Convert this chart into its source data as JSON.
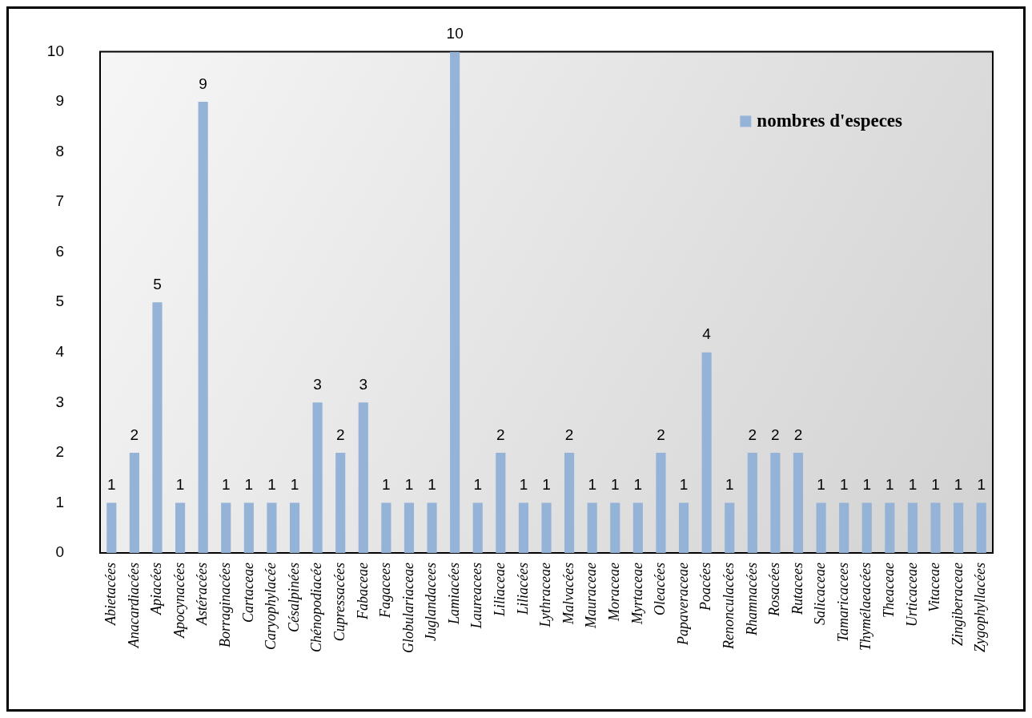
{
  "chart_data": {
    "type": "bar",
    "categories": [
      "Abietacées",
      "Anacardiacées",
      "Apiacées",
      "Apocynacées",
      "Astéracées",
      "Borraginacées",
      "Cartaceae",
      "Caryophylacée",
      "Césalpinées",
      "Chénopodiacée",
      "Cupressacées",
      "Fabaceae",
      "Fagacees",
      "Globulariaceae",
      "Juglandacees",
      "Lamiacées",
      "Laureacees",
      "Liliaceae",
      "Liliacées",
      "Lythraceae",
      "Malvacées",
      "Mauraceae",
      "Moraceae",
      "Myrtaceae",
      "Oleacées",
      "Papaveraceae",
      "Poacées",
      "Renonculacées",
      "Rhamnacées",
      "Rosacées",
      "Rutacees",
      "Salicaceae",
      "Tamaricacees",
      "Thymélaeacées",
      "Theaceae",
      "Urticaceae",
      "Vitaceae",
      "Zingiberaceae",
      "Zygophyllacées"
    ],
    "series": [
      {
        "name": "nombres d'especes",
        "color": "#95b3d7",
        "values": [
          1,
          2,
          5,
          1,
          9,
          1,
          1,
          1,
          1,
          3,
          2,
          3,
          1,
          1,
          1,
          10,
          1,
          2,
          1,
          1,
          2,
          1,
          1,
          1,
          2,
          1,
          4,
          1,
          2,
          2,
          2,
          1,
          1,
          1,
          1,
          1,
          1,
          1,
          1
        ]
      }
    ],
    "ylim": [
      0,
      10
    ],
    "yticks": [
      0,
      1,
      2,
      3,
      4,
      5,
      6,
      7,
      8,
      9,
      10
    ],
    "grid": false,
    "legend": "top right",
    "data_labels": true
  }
}
